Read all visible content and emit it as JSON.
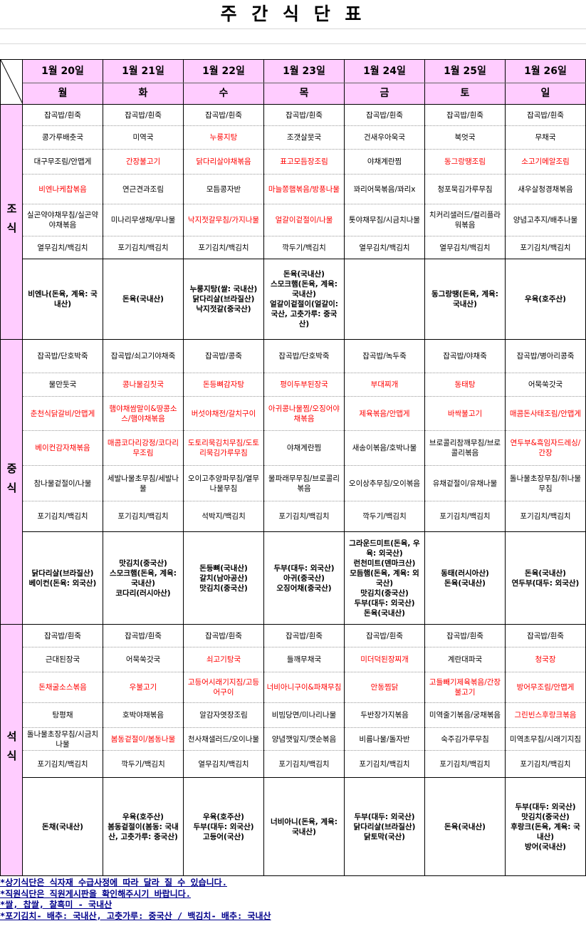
{
  "title": "주 간 식 단 표",
  "dates": [
    "1월 20일",
    "1월 21일",
    "1월 22일",
    "1월 23일",
    "1월 24일",
    "1월 25일",
    "1월 26일"
  ],
  "days": [
    "월",
    "화",
    "수",
    "목",
    "금",
    "토",
    "일"
  ],
  "meals": [
    {
      "name": "조식",
      "rows": [
        [
          "잡곡밥/흰죽",
          "잡곡밥/흰죽",
          "잡곡밥/흰죽",
          "잡곡밥/흰죽",
          "잡곡밥/흰죽",
          "잡곡밥/흰죽",
          "잡곡밥/흰죽"
        ],
        [
          "콩가루배춧국",
          "미역국",
          {
            "text": "누룽지탕",
            "color": "#ff0000"
          },
          "조갯살뭇국",
          "건새우아욱국",
          "북엇국",
          "무채국"
        ],
        [
          "대구무조림/안맵게",
          {
            "text": "간장불고기",
            "color": "#ff0000"
          },
          {
            "text": "닭다리살야채볶음",
            "color": "#ff0000"
          },
          {
            "text": "표고모듬장조림",
            "color": "#ff0000"
          },
          "야채계란찜",
          {
            "text": "동그랑땡조림",
            "color": "#ff0000"
          },
          {
            "text": "소고기메알조림",
            "color": "#ff0000"
          }
        ],
        [
          {
            "text": "비엔나케찹볶음",
            "color": "#ff0000"
          },
          "연근견과조림",
          "모듬콩자반",
          {
            "text": "마늘쫑햄볶음/방풍나물",
            "color": "#ff0000"
          },
          "꽈리어묵볶음/꽈리x",
          "청포묵김가루무침",
          "새우살청경채볶음"
        ],
        [
          "실곤약야채무침/실곤약야채볶음",
          "미나리무생채/무나물",
          {
            "text": "낙지젓갈무침/가지나물",
            "color": "#ff0000"
          },
          {
            "text": "얼갈이겉절이/나물",
            "color": "#ff0000"
          },
          "톳야채무침/시금치나물",
          "치커리샐러드/컬리플라워볶음",
          "양념고추지/배추나물"
        ],
        [
          "열무김치/백김치",
          "포기김치/백김치",
          "포기김치/백김치",
          "깍두기/백김치",
          "열무김치/백김치",
          "열무김치/백김치",
          "포기김치/백김치"
        ],
        [
          "비엔나(돈육, 계육: 국내산)",
          "돈육(국내산)",
          "누룽지탕(쌀: 국내산)\n닭다리살(브라질산)\n낙지젓갈(중국산)",
          "돈육(국내산)\n스모크햄(돈육, 계육: 국내산)\n얼갈이겉절이(얼갈이: 국산, 고춧가루: 중국산)",
          "",
          "동그랑땡(돈육, 계육: 국내산)",
          "우육(호주산)"
        ]
      ]
    },
    {
      "name": "중식",
      "rows": [
        [
          "잡곡밥/단호박죽",
          "잡곡밥/쇠고기야채죽",
          "잡곡밥/콩죽",
          "잡곡밥/단호박죽",
          "잡곡밥/녹두죽",
          "잡곡밥/야채죽",
          "잡곡밥/병아리콩죽"
        ],
        [
          "물만둣국",
          {
            "text": "콩나물김칫국",
            "color": "#ff0000"
          },
          {
            "text": "돈등뼈감자탕",
            "color": "#ff0000"
          },
          {
            "text": "평이두부된장국",
            "color": "#ff0000"
          },
          {
            "text": "부대찌개",
            "color": "#ff0000"
          },
          {
            "text": "동태탕",
            "color": "#ff0000"
          },
          "어묵쑥갓국"
        ],
        [
          {
            "text": "춘천식닭갈비/안맵게",
            "color": "#ff0000"
          },
          {
            "text": "햄야채쌈말이&땅콩소스/햄야채볶음",
            "color": "#ff0000"
          },
          {
            "text": "버섯야채전/갈치구이",
            "color": "#ff0000"
          },
          {
            "text": "아귀콩나물찜/오징어야채볶음",
            "color": "#ff0000"
          },
          {
            "text": "제육볶음/안맵게",
            "color": "#ff0000"
          },
          {
            "text": "바싹불고기",
            "color": "#ff0000"
          },
          {
            "text": "매콤돈사태조림/안맵게",
            "color": "#ff0000"
          }
        ],
        [
          {
            "text": "베이컨감자채볶음",
            "color": "#ff0000"
          },
          {
            "text": "매콤코다리강정/코다리무조림",
            "color": "#ff0000"
          },
          {
            "text": "도토리묵김치무침/도토리묵김가루무침",
            "color": "#ff0000"
          },
          "야채계란찜",
          "새송이볶음/호박나물",
          "브로콜리참깨무침/브로콜리볶음",
          {
            "text": "연두부&흑임자드레싱/간장",
            "color": "#ff0000"
          }
        ],
        [
          "참나물겉절이/나물",
          "세발나물초무침/세발나물",
          "오이고추양파무침/열무나물무침",
          "물파래무무침/브로콜리볶음",
          "오이상추무침/오이볶음",
          "유채겉절이/유채나물",
          "돌나물초장무침/취나물무침"
        ],
        [
          "포기김치/백김치",
          "포기김치/백김치",
          "석박지/백김치",
          "포기김치/백김치",
          "깍두기/백김치",
          "포기김치/백김치",
          "포기김치/백김치"
        ],
        [
          "닭다리살(브라질산)\n베이컨(돈육: 외국산)",
          "맛김치(중국산)\n스모크햄(돈육, 계육: 국내산)\n코다리(러시아산)",
          "돈등뼈(국내산)\n갈치(남아공산)\n맛김치(중국산)",
          "두부(대두: 외국산)\n아귀(중국산)\n오징어채(중국산)",
          "그라운드미트(돈육, 우육: 외국산)\n런천미트(덴마크산)\n모듬햄(돈육, 계육: 외국산)\n맛김치(중국산)\n두부(대두: 외국산)\n돈육(국내산)",
          "동태(러시아산)\n돈육(국내산)",
          "돈육(국내산)\n연두부(대두: 외국산)"
        ]
      ]
    },
    {
      "name": "석식",
      "rows": [
        [
          "잡곡밥/흰죽",
          "잡곡밥/흰죽",
          "잡곡밥/흰죽",
          "잡곡밥/흰죽",
          "잡곡밥/흰죽",
          "잡곡밥/흰죽",
          "잡곡밥/흰죽"
        ],
        [
          "근대된장국",
          "어묵쑥갓국",
          {
            "text": "쇠고기탕국",
            "color": "#ff0000"
          },
          "들깨무채국",
          {
            "text": "미더덕된장찌개",
            "color": "#ff0000"
          },
          "계란대파국",
          {
            "text": "청국장",
            "color": "#ff0000"
          }
        ],
        [
          {
            "text": "돈채굴소스볶음",
            "color": "#ff0000"
          },
          {
            "text": "우불고기",
            "color": "#ff0000"
          },
          {
            "text": "고등어시래기지짐/고등어구이",
            "color": "#ff0000"
          },
          {
            "text": "너비아니구이&파채무침",
            "color": "#ff0000"
          },
          {
            "text": "안동찜닭",
            "color": "#ff0000"
          },
          {
            "text": "고들빼기제육볶음/간장불고기",
            "color": "#ff0000"
          },
          {
            "text": "방어무조림/안맵게",
            "color": "#ff0000"
          }
        ],
        [
          "탕평채",
          "호박야채볶음",
          "알감자엿장조림",
          "비빔당면/미나리나물",
          "두반장가지볶음",
          "미역줄기볶음/궁채볶음",
          {
            "text": "그린빈스후랑크볶음",
            "color": "#ff0000"
          }
        ],
        [
          "돌나물초장무침/시금치나물",
          {
            "text": "봄동겉절이/봄동나물",
            "color": "#ff0000"
          },
          "천사채샐러드/오이나물",
          "양념깻잎지/깻순볶음",
          "비름나물/돌자반",
          "숙주김가루무침",
          "미역초무침/시래기지짐"
        ],
        [
          "포기김치/백김치",
          "깍두기/백김치",
          "열무김치/백김치",
          "포기김치/백김치",
          "포기김치/백김치",
          "포기김치/백김치",
          "포기김치/백김치"
        ],
        [
          "돈채(국내산)",
          "우육(호주산)\n봄동겉절이(봄동: 국내산, 고춧가루: 중국산)",
          "우육(호주산)\n두부(대두: 외국산)\n고등어(국산)",
          "너비아니(돈육, 계육: 국내산)",
          "두부(대두: 외국산)\n닭다리살(브라질산)\n닭토막(국산)",
          "돈육(국내산)",
          "두부(대두: 외국산)\n맛김치(중국산)\n후랑크(돈육, 계육: 국내산)\n방어(국내산)"
        ]
      ]
    }
  ],
  "notes": [
    "*상기식단은 식자재 수급사정에 따라 달라 질 수 있습니다.",
    "*직원식단은 직원게시판을 확인해주시기 바랍니다.",
    "*쌀, 찹쌀, 찰흑미 - 국내산",
    "*포기김치- 배추: 국내산, 고춧가루: 중국산 / 백김치- 배추: 국내산"
  ]
}
